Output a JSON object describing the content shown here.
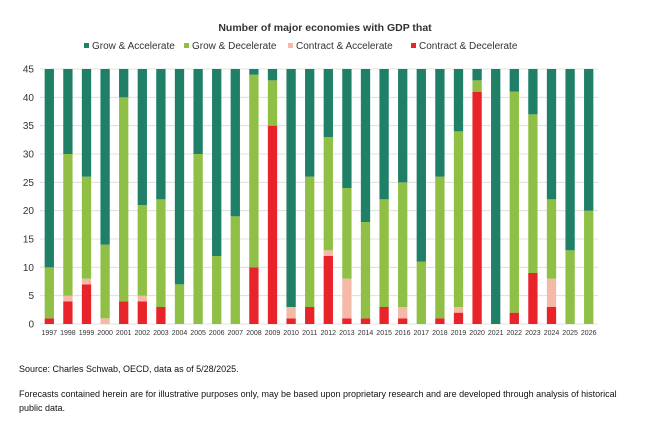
{
  "chart_data": {
    "type": "bar",
    "stacked": true,
    "title": "Number of major economies with GDP that",
    "xlabel": "",
    "ylabel": "",
    "ylim": [
      0,
      45
    ],
    "yticks": [
      0,
      5,
      10,
      15,
      20,
      25,
      30,
      35,
      40,
      45
    ],
    "grid": true,
    "legend_position": "top",
    "categories": [
      "1997",
      "1998",
      "1999",
      "2000",
      "2001",
      "2002",
      "2003",
      "2004",
      "2005",
      "2006",
      "2007",
      "2008",
      "2009",
      "2010",
      "2011",
      "2012",
      "2013",
      "2014",
      "2015",
      "2016",
      "2017",
      "2018",
      "2019",
      "2020",
      "2021",
      "2022",
      "2023",
      "2024",
      "2025",
      "2026"
    ],
    "series": [
      {
        "name": "Grow & Accelerate",
        "color": "#1f7f67",
        "values": [
          35,
          15,
          19,
          31,
          5,
          24,
          23,
          38,
          15,
          33,
          26,
          1,
          2,
          42,
          19,
          12,
          21,
          27,
          23,
          20,
          34,
          19,
          11,
          2,
          45,
          4,
          8,
          23,
          32,
          25
        ]
      },
      {
        "name": "Grow & Decelerate",
        "color": "#8fc045",
        "values": [
          9,
          25,
          18,
          13,
          36,
          16,
          19,
          7,
          30,
          12,
          19,
          34,
          8,
          0,
          23,
          20,
          16,
          17,
          19,
          22,
          11,
          25,
          31,
          2,
          0,
          39,
          28,
          14,
          13,
          20
        ]
      },
      {
        "name": "Contract & Accelerate",
        "color": "#f5b9a8",
        "values": [
          0,
          1,
          1,
          1,
          0,
          1,
          0,
          0,
          0,
          0,
          0,
          0,
          0,
          2,
          0,
          1,
          7,
          0,
          0,
          2,
          0,
          0,
          1,
          0,
          0,
          0,
          0,
          5,
          0,
          0
        ]
      },
      {
        "name": "Contract & Decelerate",
        "color": "#e8232a",
        "values": [
          1,
          4,
          7,
          0,
          4,
          4,
          3,
          0,
          0,
          0,
          0,
          10,
          35,
          1,
          3,
          12,
          1,
          1,
          3,
          1,
          0,
          1,
          2,
          41,
          0,
          2,
          9,
          3,
          0,
          0
        ]
      }
    ]
  },
  "footer": {
    "source": "Source: Charles Schwab, OECD, data as of 5/28/2025.",
    "disclaimer": "Forecasts contained herein are for illustrative purposes only, may be based upon proprietary research and are developed through analysis of historical public data."
  }
}
